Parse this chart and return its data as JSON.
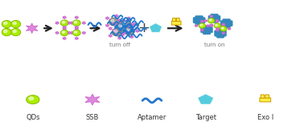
{
  "bg_top": "#ffffff",
  "bg_bottom": "#e8f8f8",
  "border_color": "#aaaaaa",
  "qd_color": "#aaee00",
  "qd_edge": "#88bb00",
  "ssb_color": "#dd88dd",
  "ssb_edge": "#cc66cc",
  "aptamer_color": "#2277cc",
  "target_color": "#55ccdd",
  "exo_yellow": "#ffee44",
  "exo_edge": "#cc9900",
  "blue_shape_color": "#3388bb",
  "gray_sphere": "#999999",
  "gray_sphere_edge": "#777777",
  "arrow_color": "#222222",
  "text_color": "#777777",
  "label_color": "#333333",
  "turn_off_text": "turn off",
  "turn_on_text": "turn on",
  "legend_labels": [
    "QDs",
    "SSB",
    "Aptamer",
    "Target",
    "Exo I"
  ],
  "fig_w": 3.78,
  "fig_h": 1.67,
  "dpi": 100
}
